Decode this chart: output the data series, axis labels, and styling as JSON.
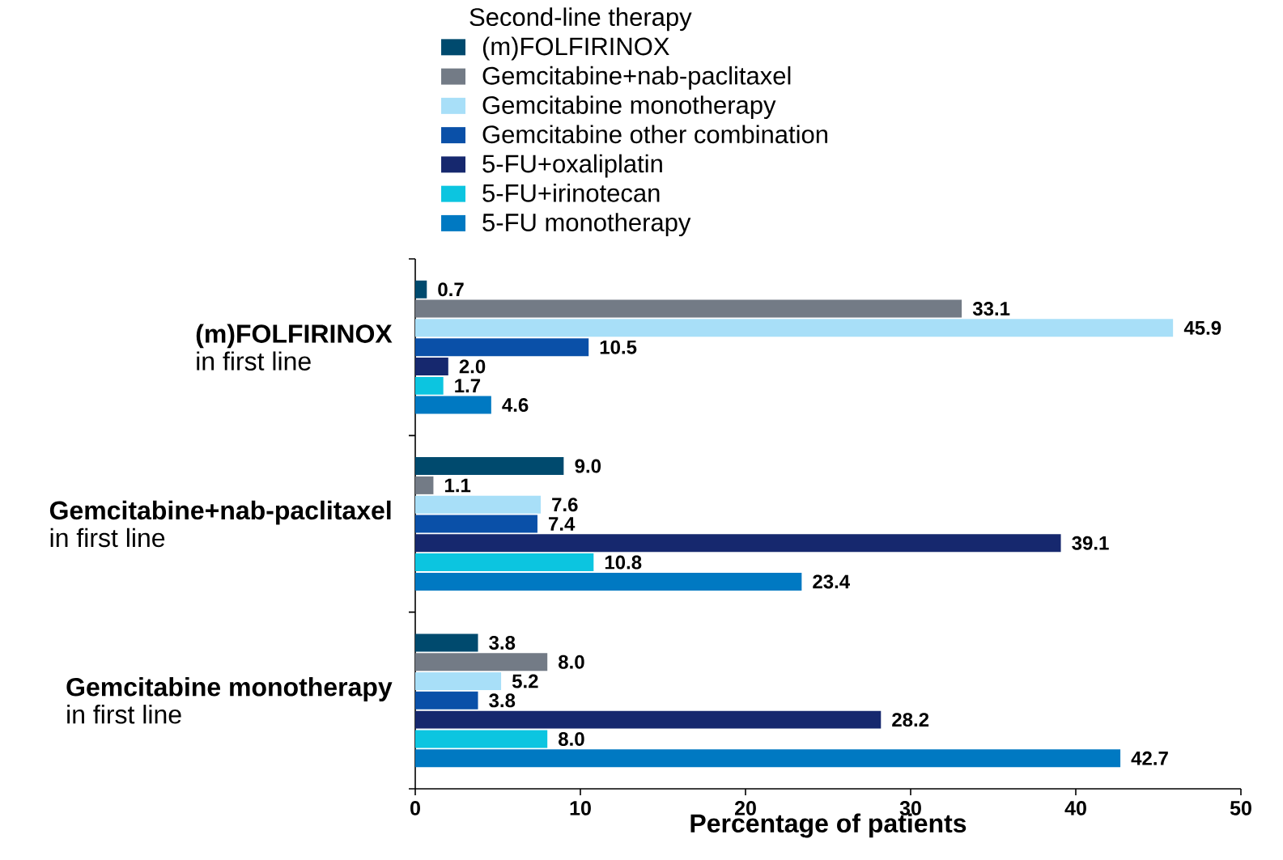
{
  "chart_data": {
    "type": "bar",
    "orientation": "horizontal",
    "legend_title": "Second-line therapy",
    "legend": "top",
    "categories": [
      "**(m)FOLFIRINOX** in first line",
      "**Gemcitabine+nab-paclitaxel** in first line",
      "**Gemcitabine monotherapy** in first line"
    ],
    "series": [
      {
        "name": "(m)FOLFIRINOX",
        "color": "#004a6e",
        "values": [
          0.7,
          9.0,
          3.8
        ],
        "value_labels": [
          "0.7",
          "9.0",
          "3.8"
        ]
      },
      {
        "name": "Gemcitabine+nab-paclitaxel",
        "color": "#737b86",
        "values": [
          33.1,
          1.1,
          8.0
        ],
        "value_labels": [
          "33.1",
          "1.1",
          "8.0"
        ]
      },
      {
        "name": "Gemcitabine monotherapy",
        "color": "#a8dff8",
        "values": [
          45.9,
          7.6,
          5.2
        ],
        "value_labels": [
          "45.9",
          "7.6",
          "5.2"
        ]
      },
      {
        "name": "Gemcitabine other combination",
        "color": "#0a50a8",
        "values": [
          10.5,
          7.4,
          3.8
        ],
        "value_labels": [
          "10.5",
          "7.4",
          "3.8"
        ]
      },
      {
        "name": "5-FU+oxaliplatin",
        "color": "#16286e",
        "values": [
          2.0,
          39.1,
          28.2
        ],
        "value_labels": [
          "2.0",
          "39.1",
          "28.2"
        ]
      },
      {
        "name": "5-FU+irinotecan",
        "color": "#0cc5e0",
        "values": [
          1.7,
          10.8,
          8.0
        ],
        "value_labels": [
          "1.7",
          "10.8",
          "8.0"
        ]
      },
      {
        "name": "5-FU monotherapy",
        "color": "#0079c2",
        "values": [
          4.6,
          23.4,
          42.7
        ],
        "value_labels": [
          "4.6",
          "23.4",
          "42.7"
        ]
      }
    ],
    "xlabel": "Percentage of patients",
    "xlim": [
      0,
      50
    ],
    "xticks": [
      0,
      10,
      20,
      30,
      40,
      50
    ]
  }
}
